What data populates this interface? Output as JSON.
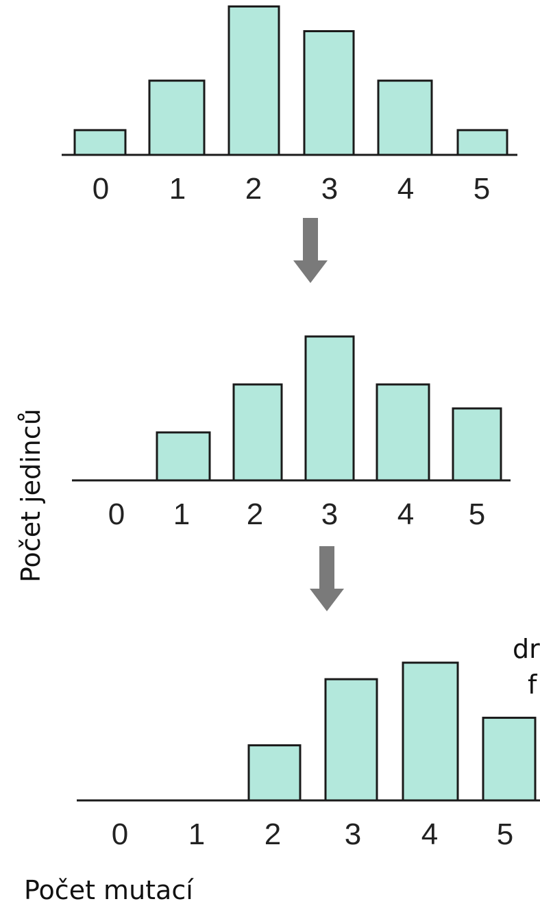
{
  "chart_data": [
    {
      "type": "bar",
      "categories": [
        "0",
        "1",
        "2",
        "3",
        "4",
        "5"
      ],
      "values": [
        1,
        3,
        6,
        5,
        3,
        1
      ]
    },
    {
      "type": "bar",
      "categories": [
        "0",
        "1",
        "2",
        "3",
        "4",
        "5"
      ],
      "values": [
        0,
        1,
        2,
        3,
        2,
        1.5
      ]
    },
    {
      "type": "bar",
      "categories": [
        "0",
        "1",
        "2",
        "3",
        "4",
        "5"
      ],
      "values": [
        0,
        0,
        1,
        2.2,
        2.5,
        1.5
      ]
    }
  ],
  "labels": {
    "y_axis": "Počet jedinců",
    "x_axis": "Počet mutací",
    "side_note_line1": "dr",
    "side_note_line2": "f"
  },
  "colors": {
    "bar_fill": "#b3e8dc",
    "bar_stroke": "#1a1a1a",
    "arrow": "#7a7a7a"
  }
}
